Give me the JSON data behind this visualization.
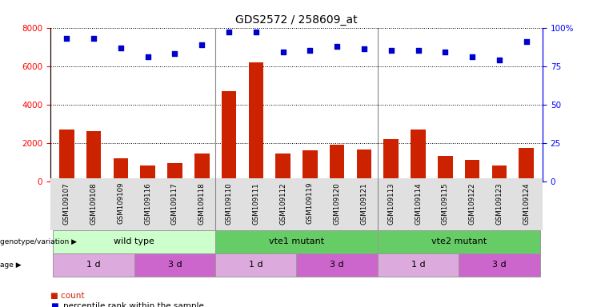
{
  "title": "GDS2572 / 258609_at",
  "samples": [
    "GSM109107",
    "GSM109108",
    "GSM109109",
    "GSM109116",
    "GSM109117",
    "GSM109118",
    "GSM109110",
    "GSM109111",
    "GSM109112",
    "GSM109119",
    "GSM109120",
    "GSM109121",
    "GSM109113",
    "GSM109114",
    "GSM109115",
    "GSM109122",
    "GSM109123",
    "GSM109124"
  ],
  "counts": [
    2700,
    2600,
    1200,
    800,
    950,
    1450,
    4700,
    6200,
    1450,
    1600,
    1900,
    1650,
    2200,
    2700,
    1300,
    1100,
    800,
    1750
  ],
  "percentile": [
    93,
    93,
    87,
    81,
    83,
    89,
    97,
    97,
    84,
    85,
    88,
    86,
    85,
    85,
    84,
    81,
    79,
    91
  ],
  "ylim_left": [
    0,
    8000
  ],
  "ylim_right": [
    0,
    100
  ],
  "yticks_left": [
    0,
    2000,
    4000,
    6000,
    8000
  ],
  "yticks_right": [
    0,
    25,
    50,
    75,
    100
  ],
  "bar_color": "#cc2200",
  "dot_color": "#0000cc",
  "genotype_groups": [
    {
      "label": "wild type",
      "start": 0,
      "end": 6,
      "color": "#ccffcc"
    },
    {
      "label": "vte1 mutant",
      "start": 6,
      "end": 12,
      "color": "#66cc66"
    },
    {
      "label": "vte2 mutant",
      "start": 12,
      "end": 18,
      "color": "#66cc66"
    }
  ],
  "age_groups": [
    {
      "label": "1 d",
      "start": 0,
      "end": 3,
      "color": "#ddaadd"
    },
    {
      "label": "3 d",
      "start": 3,
      "end": 6,
      "color": "#cc66cc"
    },
    {
      "label": "1 d",
      "start": 6,
      "end": 9,
      "color": "#ddaadd"
    },
    {
      "label": "3 d",
      "start": 9,
      "end": 12,
      "color": "#cc66cc"
    },
    {
      "label": "1 d",
      "start": 12,
      "end": 15,
      "color": "#ddaadd"
    },
    {
      "label": "3 d",
      "start": 15,
      "end": 18,
      "color": "#cc66cc"
    }
  ],
  "legend_count_color": "#cc2200",
  "legend_dot_color": "#0000cc",
  "ylabel_left_color": "red",
  "ylabel_right_color": "blue",
  "title_color": "#000000",
  "bg_color": "#ffffff",
  "xtick_bg": "#e0e0e0"
}
